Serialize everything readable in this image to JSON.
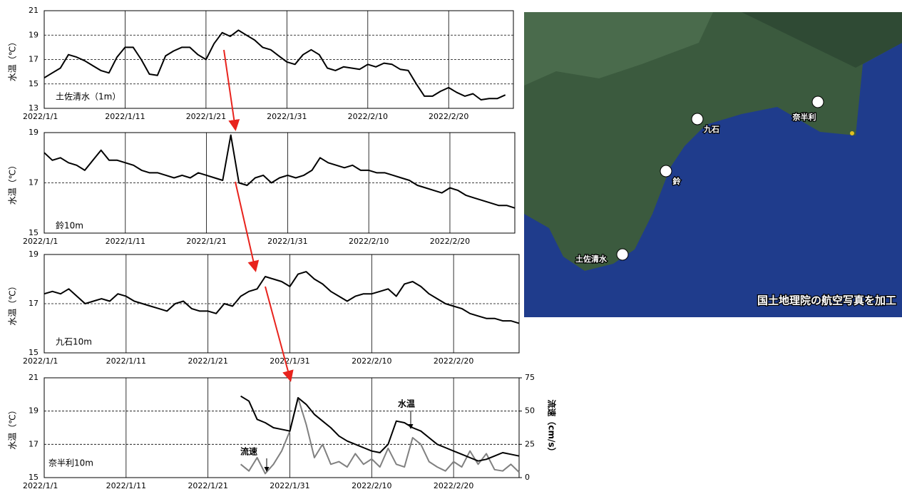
{
  "chart_data": [
    {
      "type": "line",
      "title": "土佐清水（1m）",
      "y_label": "水温（℃）",
      "x": [
        "2022/1/1",
        "2022/1/2",
        "2022/1/3",
        "2022/1/4",
        "2022/1/5",
        "2022/1/6",
        "2022/1/7",
        "2022/1/8",
        "2022/1/9",
        "2022/1/10",
        "2022/1/11",
        "2022/1/12",
        "2022/1/13",
        "2022/1/14",
        "2022/1/15",
        "2022/1/16",
        "2022/1/17",
        "2022/1/18",
        "2022/1/19",
        "2022/1/20",
        "2022/1/21",
        "2022/1/22",
        "2022/1/23",
        "2022/1/24",
        "2022/1/25",
        "2022/1/26",
        "2022/1/27",
        "2022/1/28",
        "2022/1/29",
        "2022/1/30",
        "2022/1/31",
        "2022/2/1",
        "2022/2/2",
        "2022/2/3",
        "2022/2/4",
        "2022/2/5",
        "2022/2/6",
        "2022/2/7",
        "2022/2/8",
        "2022/2/9",
        "2022/2/10",
        "2022/2/11",
        "2022/2/12",
        "2022/2/13",
        "2022/2/14",
        "2022/2/15",
        "2022/2/16",
        "2022/2/17",
        "2022/2/18",
        "2022/2/19",
        "2022/2/20",
        "2022/2/21",
        "2022/2/22",
        "2022/2/23",
        "2022/2/24",
        "2022/2/25",
        "2022/2/26",
        "2022/2/27"
      ],
      "series": [
        {
          "color": "#000000",
          "values": [
            15.5,
            15.9,
            16.3,
            17.4,
            17.2,
            16.9,
            16.5,
            16.1,
            15.9,
            17.2,
            18.0,
            18.0,
            17.0,
            15.8,
            15.7,
            17.3,
            17.7,
            18.0,
            18.0,
            17.4,
            17.0,
            18.3,
            19.2,
            18.9,
            19.4,
            19.0,
            18.6,
            18.0,
            17.8,
            17.3,
            16.8,
            16.6,
            17.4,
            17.8,
            17.4,
            16.3,
            16.1,
            16.4,
            16.3,
            16.2,
            16.6,
            16.4,
            16.7,
            16.6,
            16.2,
            16.1,
            15.0,
            14.0,
            14.0,
            14.4,
            14.7,
            14.3,
            14.0,
            14.2,
            13.7,
            13.8,
            13.8,
            14.1
          ]
        }
      ],
      "xlim": [
        "2022/1/1",
        "2022/2/28"
      ],
      "xticks": [
        "2022/1/1",
        "2022/1/11",
        "2022/1/21",
        "2022/1/31",
        "2022/2/10",
        "2022/2/20"
      ],
      "ylim": [
        13,
        21
      ],
      "yticks": [
        13,
        15,
        17,
        19,
        21
      ],
      "grid": true
    },
    {
      "type": "line",
      "title": "鈴10m",
      "y_label": "水温（℃）",
      "x": [
        "2022/1/1",
        "2022/1/2",
        "2022/1/3",
        "2022/1/4",
        "2022/1/5",
        "2022/1/6",
        "2022/1/7",
        "2022/1/8",
        "2022/1/9",
        "2022/1/10",
        "2022/1/11",
        "2022/1/12",
        "2022/1/13",
        "2022/1/14",
        "2022/1/15",
        "2022/1/16",
        "2022/1/17",
        "2022/1/18",
        "2022/1/19",
        "2022/1/20",
        "2022/1/21",
        "2022/1/22",
        "2022/1/23",
        "2022/1/24",
        "2022/1/25",
        "2022/1/26",
        "2022/1/27",
        "2022/1/28",
        "2022/1/29",
        "2022/1/30",
        "2022/1/31",
        "2022/2/1",
        "2022/2/2",
        "2022/2/3",
        "2022/2/4",
        "2022/2/5",
        "2022/2/6",
        "2022/2/7",
        "2022/2/8",
        "2022/2/9",
        "2022/2/10",
        "2022/2/11",
        "2022/2/12",
        "2022/2/13",
        "2022/2/14",
        "2022/2/15",
        "2022/2/16",
        "2022/2/17",
        "2022/2/18",
        "2022/2/19",
        "2022/2/20",
        "2022/2/21",
        "2022/2/22",
        "2022/2/23",
        "2022/2/24",
        "2022/2/25",
        "2022/2/26",
        "2022/2/27",
        "2022/2/28"
      ],
      "series": [
        {
          "color": "#000000",
          "values": [
            18.2,
            17.9,
            18.0,
            17.8,
            17.7,
            17.5,
            17.9,
            18.3,
            17.9,
            17.9,
            17.8,
            17.7,
            17.5,
            17.4,
            17.4,
            17.3,
            17.2,
            17.3,
            17.2,
            17.4,
            17.3,
            17.2,
            17.1,
            18.9,
            17.0,
            16.9,
            17.2,
            17.3,
            17.0,
            17.2,
            17.3,
            17.2,
            17.3,
            17.5,
            18.0,
            17.8,
            17.7,
            17.6,
            17.7,
            17.5,
            17.5,
            17.4,
            17.4,
            17.3,
            17.2,
            17.1,
            16.9,
            16.8,
            16.7,
            16.6,
            16.8,
            16.7,
            16.5,
            16.4,
            16.3,
            16.2,
            16.1,
            16.1,
            16.0
          ]
        }
      ],
      "xlim": [
        "2022/1/1",
        "2022/2/28"
      ],
      "xticks": [
        "2022/1/1",
        "2022/1/11",
        "2022/1/21",
        "2022/1/31",
        "2022/2/10",
        "2022/2/20"
      ],
      "ylim": [
        15,
        19
      ],
      "yticks": [
        15,
        17,
        19
      ],
      "grid": true
    },
    {
      "type": "line",
      "title": "九石10m",
      "y_label": "水温（℃）",
      "x": [
        "2022/1/1",
        "2022/1/2",
        "2022/1/3",
        "2022/1/4",
        "2022/1/5",
        "2022/1/6",
        "2022/1/7",
        "2022/1/8",
        "2022/1/9",
        "2022/1/10",
        "2022/1/11",
        "2022/1/12",
        "2022/1/13",
        "2022/1/14",
        "2022/1/15",
        "2022/1/16",
        "2022/1/17",
        "2022/1/18",
        "2022/1/19",
        "2022/1/20",
        "2022/1/21",
        "2022/1/22",
        "2022/1/23",
        "2022/1/24",
        "2022/1/25",
        "2022/1/26",
        "2022/1/27",
        "2022/1/28",
        "2022/1/29",
        "2022/1/30",
        "2022/1/31",
        "2022/2/1",
        "2022/2/2",
        "2022/2/3",
        "2022/2/4",
        "2022/2/5",
        "2022/2/6",
        "2022/2/7",
        "2022/2/8",
        "2022/2/9",
        "2022/2/10",
        "2022/2/11",
        "2022/2/12",
        "2022/2/13",
        "2022/2/14",
        "2022/2/15",
        "2022/2/16",
        "2022/2/17",
        "2022/2/18",
        "2022/2/19",
        "2022/2/20",
        "2022/2/21",
        "2022/2/22",
        "2022/2/23",
        "2022/2/24",
        "2022/2/25",
        "2022/2/26",
        "2022/2/27",
        "2022/2/28"
      ],
      "series": [
        {
          "color": "#000000",
          "values": [
            17.4,
            17.5,
            17.4,
            17.6,
            17.3,
            17.0,
            17.1,
            17.2,
            17.1,
            17.4,
            17.3,
            17.1,
            17.0,
            16.9,
            16.8,
            16.7,
            17.0,
            17.1,
            16.8,
            16.7,
            16.7,
            16.6,
            17.0,
            16.9,
            17.3,
            17.5,
            17.6,
            18.1,
            18.0,
            17.9,
            17.7,
            18.2,
            18.3,
            18.0,
            17.8,
            17.5,
            17.3,
            17.1,
            17.3,
            17.4,
            17.4,
            17.5,
            17.6,
            17.3,
            17.8,
            17.9,
            17.7,
            17.4,
            17.2,
            17.0,
            16.9,
            16.8,
            16.6,
            16.5,
            16.4,
            16.4,
            16.3,
            16.3,
            16.2
          ]
        }
      ],
      "xlim": [
        "2022/1/1",
        "2022/2/28"
      ],
      "xticks": [
        "2022/1/1",
        "2022/1/11",
        "2022/1/21",
        "2022/1/31",
        "2022/2/10",
        "2022/2/20"
      ],
      "ylim": [
        15,
        19
      ],
      "yticks": [
        15,
        17,
        19
      ],
      "grid": true
    },
    {
      "type": "line",
      "title": "奈半利10m",
      "y_label": "水温（℃）",
      "y2_label": "流速（cm/s）",
      "x": [
        "2022/1/25",
        "2022/1/26",
        "2022/1/27",
        "2022/1/28",
        "2022/1/29",
        "2022/1/30",
        "2022/1/31",
        "2022/2/1",
        "2022/2/2",
        "2022/2/3",
        "2022/2/4",
        "2022/2/5",
        "2022/2/6",
        "2022/2/7",
        "2022/2/8",
        "2022/2/9",
        "2022/2/10",
        "2022/2/11",
        "2022/2/12",
        "2022/2/13",
        "2022/2/14",
        "2022/2/15",
        "2022/2/16",
        "2022/2/17",
        "2022/2/18",
        "2022/2/19",
        "2022/2/20",
        "2022/2/21",
        "2022/2/22",
        "2022/2/23",
        "2022/2/24",
        "2022/2/25",
        "2022/2/26",
        "2022/2/27",
        "2022/2/28"
      ],
      "series": [
        {
          "name": "流速",
          "color": "#808080",
          "axis": "y2",
          "values": [
            10,
            5,
            15,
            3,
            10,
            20,
            35,
            60,
            40,
            15,
            25,
            10,
            12,
            8,
            18,
            10,
            14,
            8,
            22,
            10,
            8,
            30,
            25,
            12,
            8,
            5,
            12,
            8,
            20,
            10,
            18,
            6,
            5,
            10,
            4
          ]
        },
        {
          "name": "水温",
          "color": "#000000",
          "values": [
            19.9,
            19.6,
            18.5,
            18.3,
            18.0,
            17.9,
            17.8,
            19.8,
            19.4,
            18.8,
            18.4,
            18.0,
            17.5,
            17.2,
            17.0,
            16.8,
            16.6,
            16.5,
            17.0,
            18.4,
            18.3,
            18.0,
            17.8,
            17.4,
            17.0,
            16.8,
            16.6,
            16.4,
            16.2,
            16.0,
            16.1,
            16.3,
            16.5,
            16.4,
            16.3
          ]
        }
      ],
      "xlim": [
        "2022/1/1",
        "2022/2/28"
      ],
      "xticks": [
        "2022/1/1",
        "2022/1/11",
        "2022/1/21",
        "2022/1/31",
        "2022/2/10",
        "2022/2/20"
      ],
      "ylim": [
        15,
        21
      ],
      "yticks": [
        15,
        17,
        19,
        21
      ],
      "y2lim": [
        0,
        75
      ],
      "y2ticks": [
        0,
        25,
        50,
        75
      ],
      "grid": true
    }
  ],
  "map": {
    "places": [
      "奈半利",
      "九石",
      "鈴",
      "土佐清水"
    ],
    "caption": "国土地理院の航空写真を加工"
  }
}
